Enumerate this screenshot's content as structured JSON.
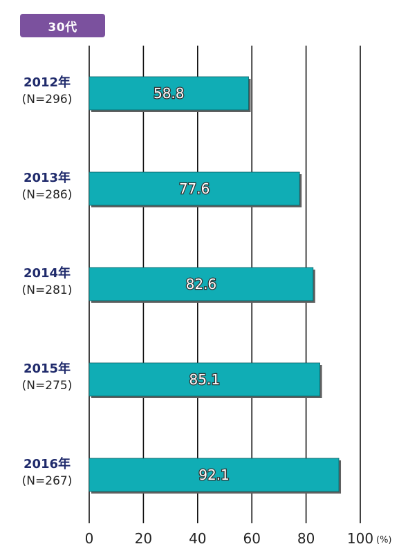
{
  "badge": "30代",
  "chart_data": {
    "type": "bar",
    "orientation": "horizontal",
    "categories": [
      "2012年",
      "2013年",
      "2014年",
      "2015年",
      "2016年"
    ],
    "sample_sizes": [
      "(N=296)",
      "(N=286)",
      "(N=281)",
      "(N=275)",
      "(N=267)"
    ],
    "values": [
      58.8,
      77.6,
      82.6,
      85.1,
      92.1
    ],
    "value_labels": [
      "58.8",
      "77.6",
      "82.6",
      "85.1",
      "92.1"
    ],
    "xlim": [
      0,
      100
    ],
    "ticks": [
      "0",
      "20",
      "40",
      "60",
      "80",
      "100"
    ],
    "tick_values": [
      0,
      20,
      40,
      60,
      80,
      100
    ],
    "unit": "(%)",
    "bar_color": "#10adb5",
    "grid": true,
    "legend": "none"
  }
}
